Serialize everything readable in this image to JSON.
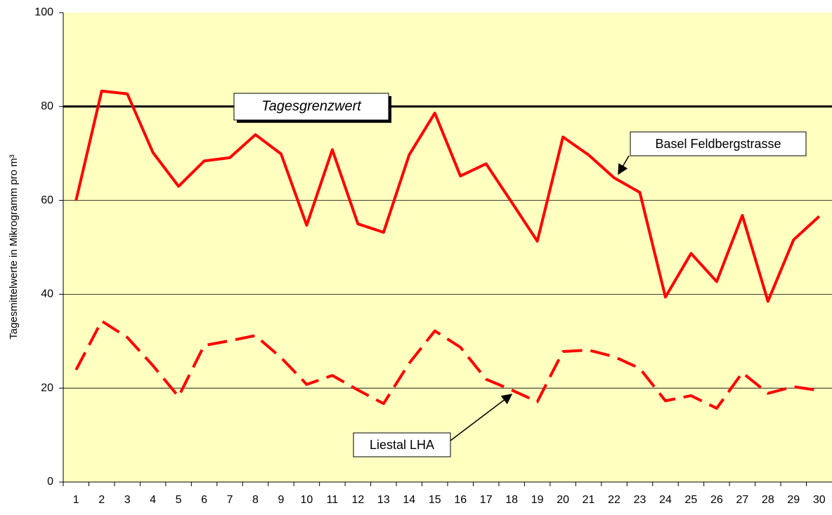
{
  "chart_data": {
    "type": "line",
    "y_label": "Tagesmittelwerte in Mikrogramm pro m³",
    "categories": [
      "1",
      "2",
      "3",
      "4",
      "5",
      "6",
      "7",
      "8",
      "9",
      "10",
      "11",
      "12",
      "13",
      "14",
      "15",
      "16",
      "17",
      "18",
      "19",
      "20",
      "21",
      "22",
      "23",
      "24",
      "25",
      "26",
      "27",
      "28",
      "29",
      "30"
    ],
    "series": [
      {
        "name": "Basel Feldbergstrasse",
        "color": "#ff0000",
        "line_style": "solid",
        "values": [
          60,
          83.3,
          82.7,
          70.2,
          63,
          68.4,
          69.1,
          74,
          69.9,
          54.7,
          70.8,
          55,
          53.2,
          69.7,
          78.6,
          65.2,
          67.8,
          59.6,
          51.3,
          73.5,
          69.7,
          64.8,
          61.7,
          39.4,
          48.7,
          42.7,
          56.8,
          38.5,
          51.6,
          56.6
        ]
      },
      {
        "name": "Liestal LHA",
        "color": "#ff0000",
        "line_style": "dashed",
        "values": [
          23.9,
          34.3,
          30.8,
          24.8,
          18.2,
          29.1,
          30.1,
          31.2,
          26.5,
          20.8,
          22.7,
          19.6,
          16.7,
          25.3,
          32.2,
          28.7,
          21.9,
          19.6,
          17.1,
          27.8,
          28.1,
          26.7,
          24.2,
          17.3,
          18.4,
          15.7,
          23.3,
          18.9,
          20.3,
          19.5
        ]
      }
    ],
    "threshold": {
      "value": 80,
      "label": "Tagesgrenzwert"
    },
    "ylim": [
      0,
      100
    ],
    "yticks": [
      0,
      20,
      40,
      60,
      80,
      100
    ],
    "grid": true,
    "plot_background": "#ffffc0"
  }
}
